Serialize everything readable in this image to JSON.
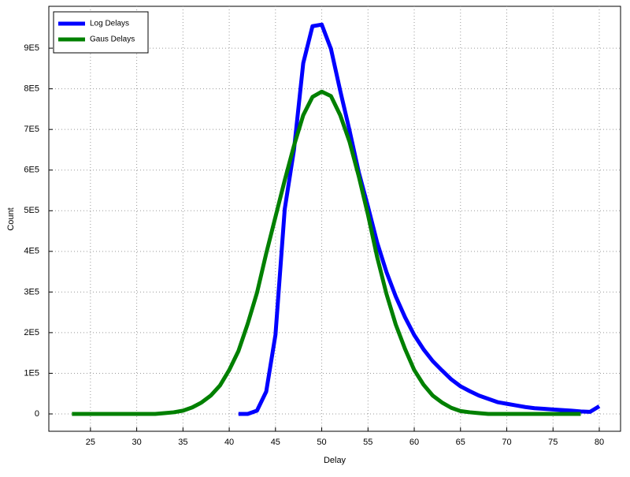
{
  "chart_data": {
    "type": "line",
    "x_label": "Delay",
    "y_label": "Count",
    "xlim": [
      20.5,
      82.3
    ],
    "ylim": [
      -42700,
      1003000
    ],
    "xticks": [
      25,
      30,
      35,
      40,
      45,
      50,
      55,
      60,
      65,
      70,
      75,
      80
    ],
    "yticks": [
      0,
      {
        "value": 100000,
        "label": "1E5"
      },
      {
        "value": 200000,
        "label": "2E5"
      },
      {
        "value": 300000,
        "label": "3E5"
      },
      {
        "value": 400000,
        "label": "4E5"
      },
      {
        "value": 500000,
        "label": "5E5"
      },
      {
        "value": 600000,
        "label": "6E5"
      },
      {
        "value": 700000,
        "label": "7E5"
      },
      {
        "value": 800000,
        "label": "8E5"
      },
      {
        "value": 900000,
        "label": "9E5"
      }
    ],
    "grid": true,
    "legend": "top-left",
    "series": [
      {
        "name": "Log Delays",
        "color": "#0000ff",
        "x": [
          41,
          42,
          43,
          44,
          45,
          46,
          47,
          48,
          49,
          50,
          51,
          52,
          53,
          54,
          55,
          56,
          57,
          58,
          59,
          60,
          61,
          62,
          63,
          64,
          65,
          66,
          67,
          68,
          69,
          70,
          71,
          72,
          73,
          74,
          75,
          76,
          77,
          78,
          79,
          80
        ],
        "values": [
          0,
          0,
          8000,
          55000,
          195000,
          504000,
          650000,
          863000,
          954000,
          958000,
          898000,
          795000,
          698000,
          595000,
          510000,
          421000,
          349000,
          289000,
          238000,
          194000,
          159000,
          130000,
          107000,
          85000,
          68000,
          56000,
          45000,
          37000,
          29000,
          25000,
          21000,
          17000,
          14000,
          12500,
          11000,
          9500,
          8000,
          6000,
          5000,
          19000
        ]
      },
      {
        "name": "Gaus Delays",
        "color": "#008000",
        "x": [
          23,
          24,
          25,
          26,
          27,
          28,
          29,
          30,
          31,
          32,
          33,
          34,
          35,
          36,
          37,
          38,
          39,
          40,
          41,
          42,
          43,
          44,
          45,
          46,
          47,
          48,
          49,
          50,
          51,
          52,
          53,
          54,
          55,
          56,
          57,
          58,
          59,
          60,
          61,
          62,
          63,
          64,
          65,
          66,
          67,
          68,
          69,
          70,
          71,
          72,
          73,
          74,
          75,
          76,
          77,
          78
        ],
        "values": [
          0,
          0,
          0,
          0,
          0,
          0,
          0,
          0,
          0,
          0,
          2000,
          4000,
          8000,
          16000,
          28000,
          45000,
          70000,
          108000,
          155000,
          222000,
          298000,
          395000,
          485000,
          575000,
          660000,
          735000,
          780000,
          793000,
          782000,
          735000,
          670000,
          585000,
          490000,
          385000,
          295000,
          220000,
          160000,
          108000,
          72000,
          45000,
          28000,
          15000,
          7000,
          4000,
          2000,
          0,
          0,
          0,
          0,
          0,
          0,
          0,
          0,
          0,
          0,
          0
        ]
      }
    ]
  }
}
